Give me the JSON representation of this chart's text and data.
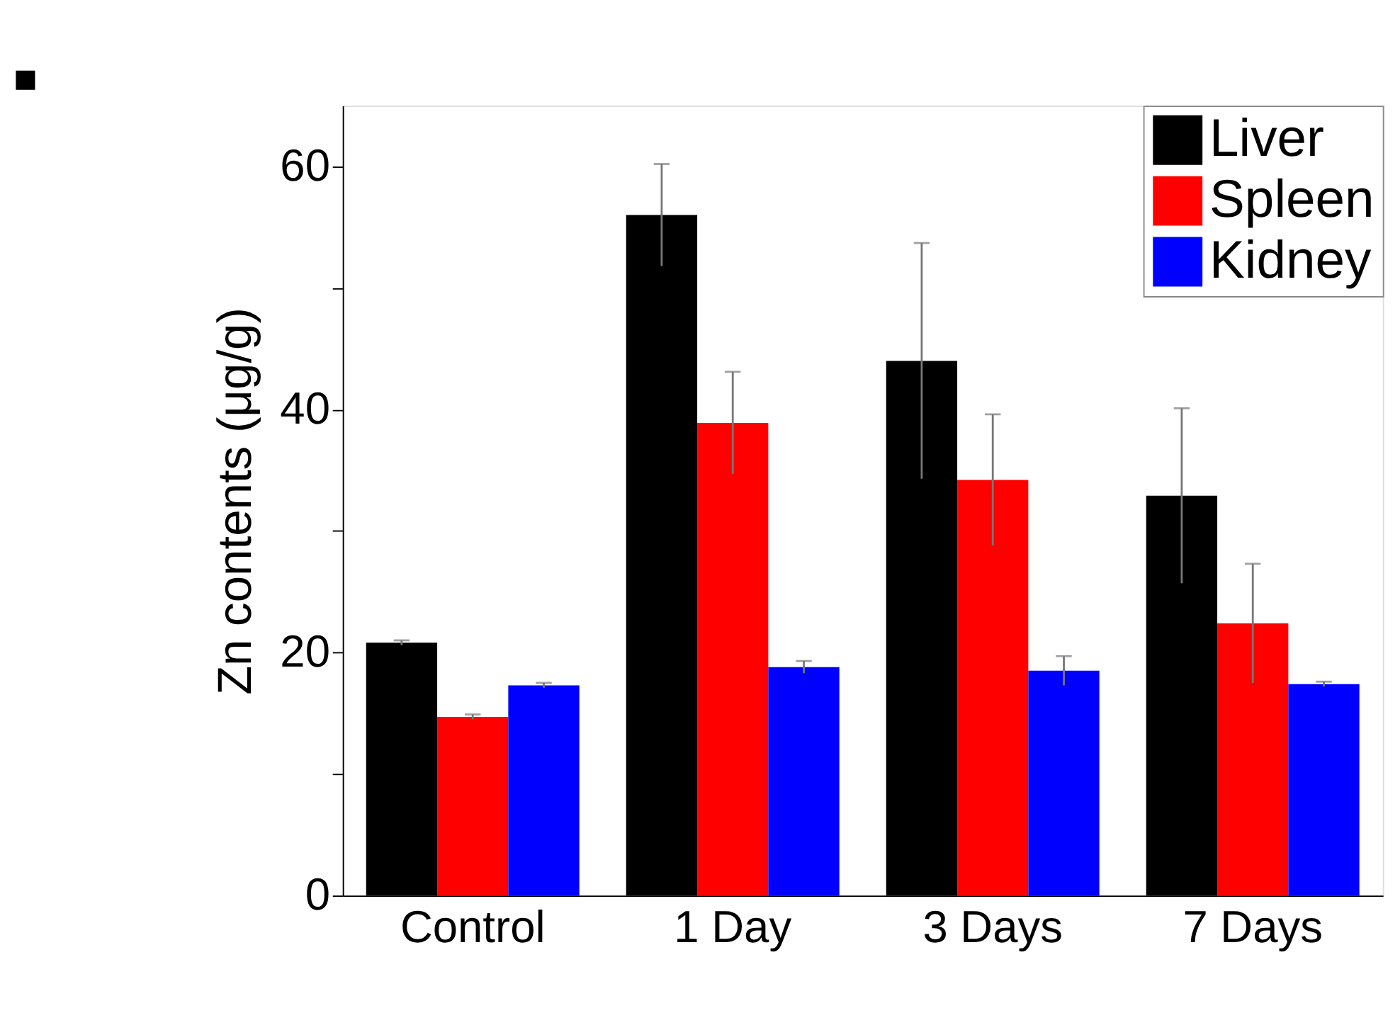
{
  "chart_data": {
    "type": "bar",
    "ylabel": "Zn contents (μg/g)",
    "categories": [
      "Control",
      "1 Day",
      "3 Days",
      "7 Days"
    ],
    "series": [
      {
        "name": "Liver",
        "color": "#000000",
        "values": [
          20.8,
          56.0,
          44.0,
          32.9
        ],
        "errors": [
          0.2,
          4.2,
          9.7,
          7.2
        ]
      },
      {
        "name": "Spleen",
        "color": "#ff0000",
        "values": [
          14.7,
          38.9,
          34.2,
          22.4
        ],
        "errors": [
          0.2,
          4.2,
          5.4,
          4.9
        ]
      },
      {
        "name": "Kidney",
        "color": "#0000ff",
        "values": [
          17.3,
          18.8,
          18.5,
          17.4
        ],
        "errors": [
          0.2,
          0.5,
          1.2,
          0.2
        ]
      }
    ],
    "ylim": [
      0,
      65
    ],
    "yticks": [
      0,
      {
        "value": 10,
        "label": null
      },
      20,
      {
        "value": 30,
        "label": null
      },
      40,
      {
        "value": 50,
        "label": null
      },
      60
    ],
    "legend": "top right",
    "grid": false,
    "annotations": [
      "■"
    ]
  }
}
